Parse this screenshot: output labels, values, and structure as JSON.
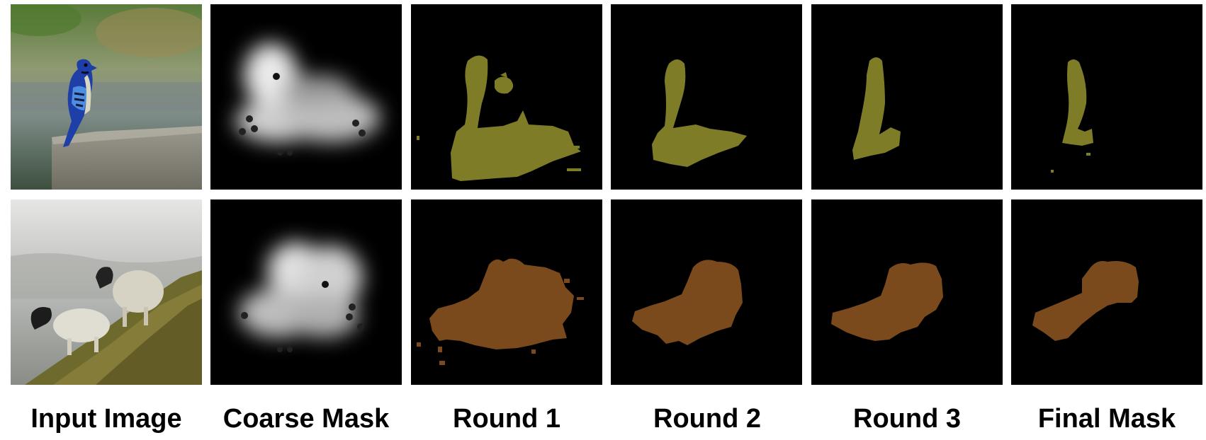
{
  "columns": [
    {
      "id": "input",
      "label": "Input Image"
    },
    {
      "id": "coarse",
      "label": "Coarse Mask"
    },
    {
      "id": "round1",
      "label": "Round 1"
    },
    {
      "id": "round2",
      "label": "Round 2"
    },
    {
      "id": "round3",
      "label": "Round 3"
    },
    {
      "id": "final",
      "label": "Final Mask"
    }
  ],
  "rows": [
    {
      "subject": "blue jay on rock",
      "mask_color": "#7f7c28"
    },
    {
      "subject": "two sheep on grassy slope",
      "mask_color": "#7a4a1c"
    }
  ]
}
